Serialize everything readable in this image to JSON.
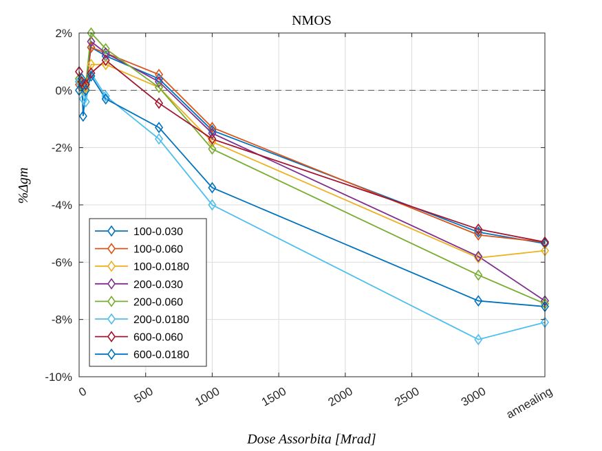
{
  "chart_data": {
    "type": "line",
    "title": "NMOS",
    "xlabel": "Dose Assorbita [Mrad]",
    "ylabel": "%Δgm",
    "xlim": [
      0,
      3500
    ],
    "ylim": [
      -10,
      2
    ],
    "x_ticks": [
      {
        "value": 0,
        "label": "0"
      },
      {
        "value": 500,
        "label": "500"
      },
      {
        "value": 1000,
        "label": "1000"
      },
      {
        "value": 1500,
        "label": "1500"
      },
      {
        "value": 2000,
        "label": "2000"
      },
      {
        "value": 2500,
        "label": "2500"
      },
      {
        "value": 3000,
        "label": "3000"
      },
      {
        "value": 3500,
        "label": "annealing"
      }
    ],
    "y_ticks": [
      {
        "value": 2,
        "label": "2%"
      },
      {
        "value": 0,
        "label": "0%"
      },
      {
        "value": -2,
        "label": "-2%"
      },
      {
        "value": -4,
        "label": "-4%"
      },
      {
        "value": -6,
        "label": "-6%"
      },
      {
        "value": -8,
        "label": "-8%"
      },
      {
        "value": -10,
        "label": "-10%"
      }
    ],
    "grid": true,
    "reference_line": {
      "y": 0,
      "style": "dashed"
    },
    "legend_position": "bottom-left",
    "marker": "diamond",
    "x": [
      0,
      20,
      30,
      50,
      90,
      200,
      600,
      1000,
      3000,
      3500
    ],
    "series": [
      {
        "name": "100-0.030",
        "color": "#0072BD",
        "values": [
          0.4,
          0.2,
          0.1,
          0.1,
          1.5,
          1.2,
          0.4,
          -1.4,
          -4.95,
          -5.35
        ]
      },
      {
        "name": "100-0.060",
        "color": "#D95319",
        "values": [
          0.2,
          0.2,
          0.0,
          0.1,
          1.5,
          1.3,
          0.55,
          -1.3,
          -5.05,
          -5.3
        ]
      },
      {
        "name": "100-0.0180",
        "color": "#EDB120",
        "values": [
          0.3,
          0.1,
          0.0,
          0.1,
          0.9,
          0.9,
          0.1,
          -1.8,
          -5.85,
          -5.6
        ]
      },
      {
        "name": "200-0.030",
        "color": "#7E2F8E",
        "values": [
          0.3,
          0.3,
          0.1,
          0.2,
          1.7,
          1.3,
          0.3,
          -1.5,
          -5.8,
          -7.35
        ]
      },
      {
        "name": "200-0.060",
        "color": "#77AC30",
        "values": [
          0.4,
          0.3,
          0.1,
          0.2,
          2.0,
          1.45,
          0.1,
          -2.05,
          -6.45,
          -7.45
        ]
      },
      {
        "name": "200-0.0180",
        "color": "#4DBEEE",
        "values": [
          0.3,
          0.1,
          -0.3,
          -0.4,
          0.6,
          -0.2,
          -1.7,
          -4.0,
          -8.7,
          -8.1
        ]
      },
      {
        "name": "600-0.060",
        "color": "#A2142F",
        "values": [
          0.65,
          0.3,
          0.2,
          0.2,
          0.6,
          1.05,
          -0.45,
          -1.7,
          -4.85,
          -5.3
        ]
      },
      {
        "name": "600-0.0180",
        "color": "#0072BD",
        "values": [
          0.0,
          0.4,
          -0.9,
          0.0,
          0.5,
          -0.3,
          -1.3,
          -3.4,
          -7.35,
          -7.55
        ]
      }
    ]
  }
}
